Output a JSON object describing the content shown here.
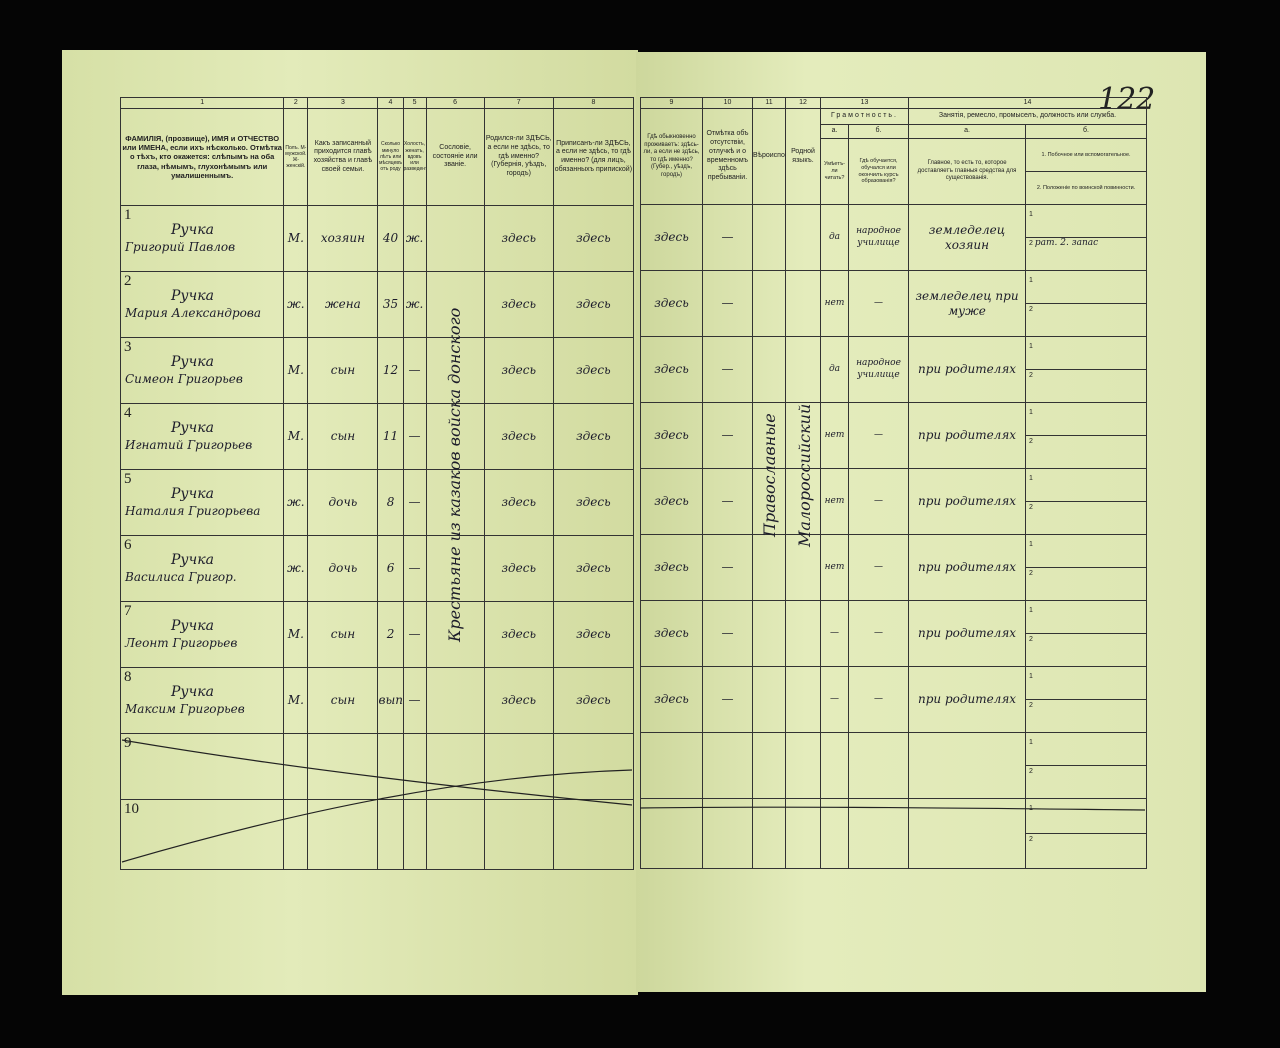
{
  "page_number": "122",
  "left_headers": {
    "c1n": "1",
    "c2n": "2",
    "c3n": "3",
    "c4n": "4",
    "c5n": "5",
    "c6n": "6",
    "c7n": "7",
    "c8n": "8",
    "c1": "ФАМИЛІЯ, (прозвище), ИМЯ и ОТЧЕСТВО или ИМЕНА, если ихъ нѣсколько. Отмѣтка о тѣхъ, кто окажется: слѣпымъ на оба глаза, нѣмымъ, глухонѣмымъ или умалишеннымъ.",
    "c2": "Полъ. М-мужской. Ж-женскій.",
    "c3": "Какъ записанный приходится главѣ хозяйства и главѣ своей семьи.",
    "c4": "Сколько минуло лѣтъ или мѣсяцевъ отъ роду",
    "c5": "Холостъ, женатъ, вдовъ или разведенъ.",
    "c6": "Сословіе, состояніе или званіе.",
    "c7": "Родился-ли ЗДѢСЬ, а если не здѣсь, то гдѣ именно? (Губернія, уѣздъ, городъ)",
    "c8": "Приписанъ-ли ЗДѢСЬ, а если не здѣсь, то гдѣ именно? (для лицъ, обязанныхъ припиской)"
  },
  "right_headers": {
    "c9n": "9",
    "c10n": "10",
    "c11n": "11",
    "c12n": "12",
    "c13n": "13",
    "c14n": "14",
    "c9": "Гдѣ обыкновенно проживаетъ: здѣсь-ли, а если не здѣсь, то гдѣ именно? (Губер., уѣздъ, городъ)",
    "c10": "Отмѣтка объ отсутствіи, отлучкѣ и о временномъ здѣсь пребываніи.",
    "c11": "Вѣроисповѣданіе.",
    "c12": "Родной языкъ.",
    "c13": "Грамотность.",
    "c13a": "а.",
    "c13b": "б.",
    "c13a_t": "Умѣетъ-ли читать?",
    "c13b_t": "Гдѣ обучается, обучался или окончилъ курсъ образованія?",
    "c14": "Занятія, ремесло, промыселъ, должность или служба.",
    "c14a": "а.",
    "c14b": "б.",
    "c14a_t": "Главное, то есть то, которое доставляетъ главныя средства для существованія.",
    "c14b1": "1. Побочное или вспомогательное.",
    "c14b2": "2. Положеніе по воинской повинности."
  },
  "estate_vertical": "Крестьяне из казаков войска донского",
  "religion_vertical": "Православные",
  "language_vertical": "Малороссийский",
  "sub1": "1",
  "sub2": "2",
  "rows": [
    {
      "n": "1",
      "surname": "Ручка",
      "name": "Григорий Павлов",
      "sex": "М.",
      "relation": "хозяин",
      "age": "40",
      "marital": "ж.",
      "born": "здесь",
      "registered": "здесь",
      "residence": "здесь",
      "absence": "—",
      "literate": "да",
      "school": "народное училище",
      "occ": "земледелец хозяин",
      "occ2": "",
      "mil": "рат. 2. запас"
    },
    {
      "n": "2",
      "surname": "Ручка",
      "name": "Мария Александрова",
      "sex": "ж.",
      "relation": "жена",
      "age": "35",
      "marital": "ж.",
      "born": "здесь",
      "registered": "здесь",
      "residence": "здесь",
      "absence": "—",
      "literate": "нет",
      "school": "—",
      "occ": "земледелец при муже",
      "occ2": "",
      "mil": ""
    },
    {
      "n": "3",
      "surname": "Ручка",
      "name": "Симеон Григорьев",
      "sex": "М.",
      "relation": "сын",
      "age": "12",
      "marital": "—",
      "born": "здесь",
      "registered": "здесь",
      "residence": "здесь",
      "absence": "—",
      "literate": "да",
      "school": "народное училище",
      "occ": "при родителях",
      "occ2": "",
      "mil": ""
    },
    {
      "n": "4",
      "surname": "Ручка",
      "name": "Игнатий Григорьев",
      "sex": "М.",
      "relation": "сын",
      "age": "11",
      "marital": "—",
      "born": "здесь",
      "registered": "здесь",
      "residence": "здесь",
      "absence": "—",
      "literate": "нет",
      "school": "—",
      "occ": "при родителях",
      "occ2": "",
      "mil": ""
    },
    {
      "n": "5",
      "surname": "Ручка",
      "name": "Наталия Григорьева",
      "sex": "ж.",
      "relation": "дочь",
      "age": "8",
      "marital": "—",
      "born": "здесь",
      "registered": "здесь",
      "residence": "здесь",
      "absence": "—",
      "literate": "нет",
      "school": "—",
      "occ": "при родителях",
      "occ2": "",
      "mil": ""
    },
    {
      "n": "6",
      "surname": "Ручка",
      "name": "Василиса Григор.",
      "sex": "ж.",
      "relation": "дочь",
      "age": "6",
      "marital": "—",
      "born": "здесь",
      "registered": "здесь",
      "residence": "здесь",
      "absence": "—",
      "literate": "нет",
      "school": "—",
      "occ": "при родителях",
      "occ2": "",
      "mil": ""
    },
    {
      "n": "7",
      "surname": "Ручка",
      "name": "Леонт Григорьев",
      "sex": "М.",
      "relation": "сын",
      "age": "2",
      "marital": "—",
      "born": "здесь",
      "registered": "здесь",
      "residence": "здесь",
      "absence": "—",
      "literate": "—",
      "school": "—",
      "occ": "при родителях",
      "occ2": "",
      "mil": ""
    },
    {
      "n": "8",
      "surname": "Ручка",
      "name": "Максим Григорьев",
      "sex": "М.",
      "relation": "сын",
      "age": "вып.",
      "marital": "—",
      "born": "здесь",
      "registered": "здесь",
      "residence": "здесь",
      "absence": "—",
      "literate": "—",
      "school": "—",
      "occ": "при родителях",
      "occ2": "",
      "mil": ""
    },
    {
      "n": "9"
    },
    {
      "n": "10"
    }
  ]
}
